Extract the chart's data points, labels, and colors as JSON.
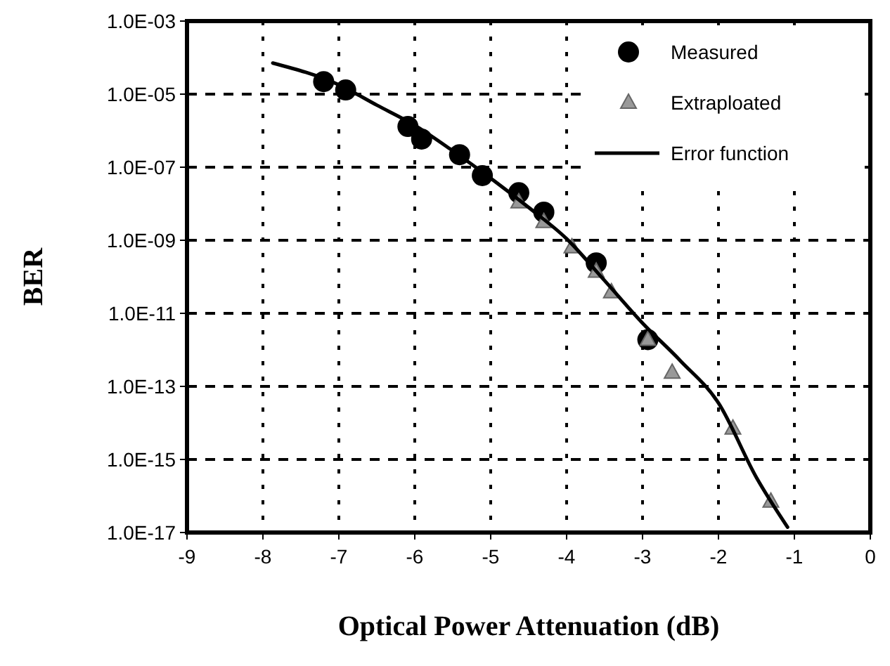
{
  "chart_data": {
    "type": "scatter",
    "xlabel": "Optical Power Attenuation (dB)",
    "ylabel": "BER",
    "xlim": [
      -9,
      0
    ],
    "xticks": [
      -9,
      -8,
      -7,
      -6,
      -5,
      -4,
      -3,
      -2,
      -1,
      0
    ],
    "ylim": [
      1e-17,
      0.001
    ],
    "log": "y",
    "yticks": [
      {
        "value": 1e-17,
        "label": "1.0E-17"
      },
      {
        "value": 1e-15,
        "label": "1.0E-15"
      },
      {
        "value": 1e-13,
        "label": "1.0E-13"
      },
      {
        "value": 1e-11,
        "label": "1.0E-11"
      },
      {
        "value": 1e-09,
        "label": "1.0E-09"
      },
      {
        "value": 1e-07,
        "label": "1.0E-07"
      },
      {
        "value": 1e-05,
        "label": "1.0E-05"
      },
      {
        "value": 0.001,
        "label": "1.0E-03"
      }
    ],
    "grid": true,
    "legend": "top right",
    "series": [
      {
        "name": "Measured",
        "marker": "circle",
        "color": "#000000",
        "x": [
          -7.2,
          -6.91,
          -6.09,
          -5.91,
          -5.41,
          -5.11,
          -4.63,
          -4.3,
          -3.61,
          -2.93
        ],
        "values": [
          2.2e-05,
          1.3e-05,
          1.3e-06,
          5.9e-07,
          2.2e-07,
          5.9e-08,
          2e-08,
          5.9e-09,
          2.4e-10,
          1.9e-12
        ]
      },
      {
        "name": "Extraploated",
        "marker": "triangle",
        "color": "#999999",
        "x": [
          -4.63,
          -4.3,
          -3.93,
          -3.61,
          -3.41,
          -2.93,
          -2.61,
          -1.81,
          -1.31
        ],
        "values": [
          1.1e-08,
          3.2e-09,
          6.5e-10,
          1.4e-10,
          3.8e-11,
          1.9e-12,
          2.4e-13,
          7.1e-15,
          7.1e-17
        ]
      },
      {
        "name": "Error function",
        "type": "line",
        "marker": "none",
        "line_style": "solid",
        "color": "#000000",
        "x": [
          -7.87,
          -7,
          -6.5,
          -6,
          -5.5,
          -5,
          -4.5,
          -4,
          -3.5,
          -3,
          -2.5,
          -2,
          -1.5,
          -1.09
        ],
        "values": [
          7.1e-05,
          1.8e-05,
          5e-06,
          1.4e-06,
          2.8e-07,
          5e-08,
          7.9e-09,
          1.1e-09,
          7.9e-11,
          5.4e-12,
          5e-13,
          3.5e-14,
          3.2e-16,
          1.4e-17
        ]
      }
    ]
  }
}
